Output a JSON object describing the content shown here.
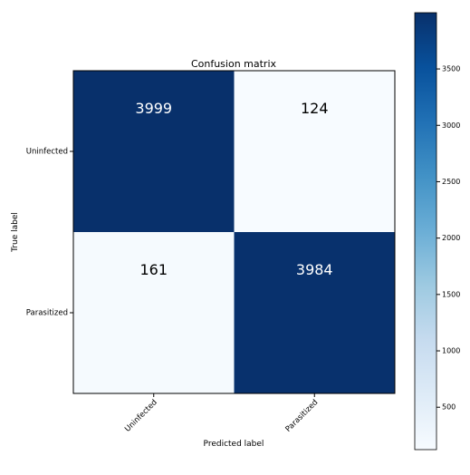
{
  "chart_data": {
    "type": "heatmap",
    "title": "Confusion matrix",
    "xlabel": "Predicted label",
    "ylabel": "True label",
    "x_categories": [
      "Uninfected",
      "Parasitized"
    ],
    "y_categories": [
      "Uninfected",
      "Parasitized"
    ],
    "values": [
      [
        3999,
        124
      ],
      [
        161,
        3984
      ]
    ],
    "colormap": "Blues",
    "colorbar": {
      "range": [
        124,
        3999
      ],
      "ticks": [
        500,
        1000,
        1500,
        2000,
        2500,
        3000,
        3500
      ]
    }
  }
}
